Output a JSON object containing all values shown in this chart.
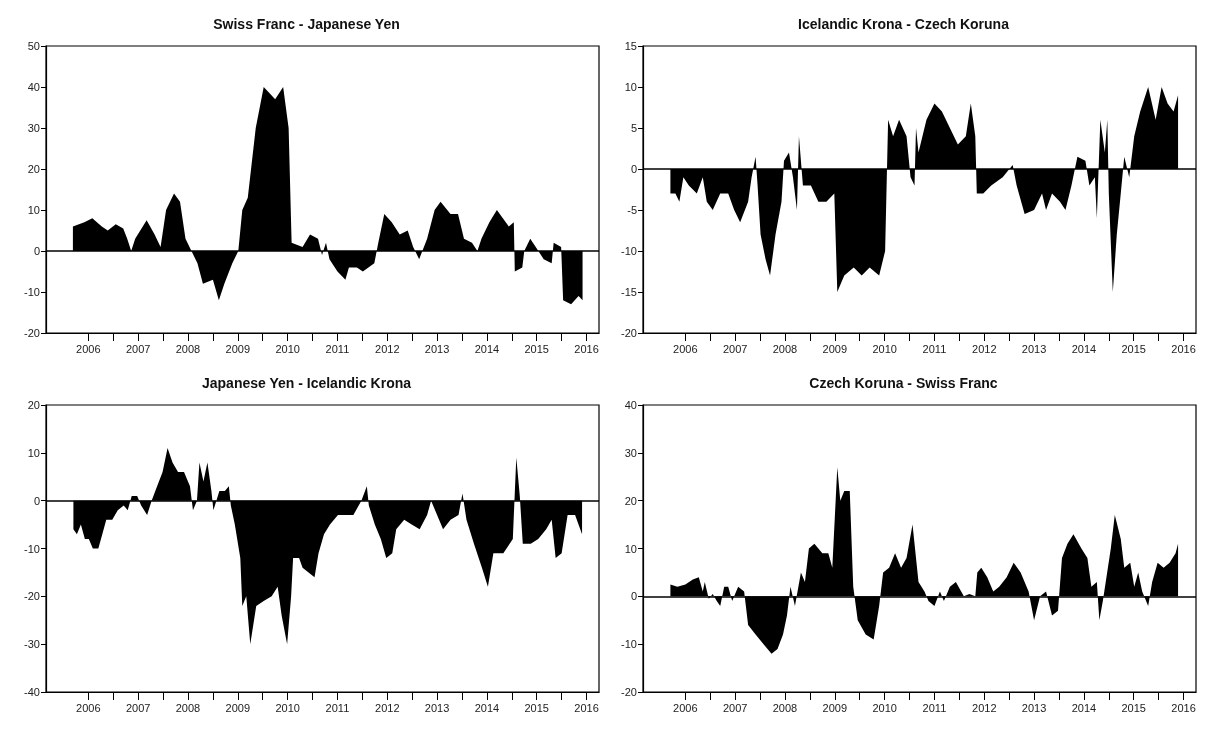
{
  "chart_data": [
    {
      "type": "area",
      "title": "Swiss Franc - Japanese Yen",
      "xlim": [
        2005.65,
        2016.75
      ],
      "ylim": [
        -20,
        50
      ],
      "yticks": [
        -20,
        -10,
        0,
        10,
        20,
        30,
        40,
        50
      ],
      "xticks": [
        {
          "value": 2006.5,
          "label": "2006"
        },
        {
          "value": 2007,
          "label": null
        },
        {
          "value": 2007.5,
          "label": "2007"
        },
        {
          "value": 2008,
          "label": null
        },
        {
          "value": 2008.5,
          "label": "2008"
        },
        {
          "value": 2009,
          "label": null
        },
        {
          "value": 2009.5,
          "label": "2009"
        },
        {
          "value": 2010,
          "label": null
        },
        {
          "value": 2010.5,
          "label": "2010"
        },
        {
          "value": 2011,
          "label": null
        },
        {
          "value": 2011.5,
          "label": "2011"
        },
        {
          "value": 2012,
          "label": null
        },
        {
          "value": 2012.5,
          "label": "2012"
        },
        {
          "value": 2013,
          "label": null
        },
        {
          "value": 2013.5,
          "label": "2013"
        },
        {
          "value": 2014,
          "label": null
        },
        {
          "value": 2014.5,
          "label": "2014"
        },
        {
          "value": 2015,
          "label": null
        },
        {
          "value": 2015.5,
          "label": "2015"
        },
        {
          "value": 2016,
          "label": null
        },
        {
          "value": 2016.5,
          "label": "2016"
        }
      ],
      "ref_lines": [
        {
          "axis": "y",
          "value": 0
        }
      ],
      "series": [
        {
          "color": "#000000",
          "x": [
            2006.19,
            2006.42,
            2006.58,
            2006.77,
            2006.89,
            2007.05,
            2007.2,
            2007.28,
            2007.36,
            2007.44,
            2007.67,
            2007.83,
            2007.95,
            2008.06,
            2008.22,
            2008.34,
            2008.45,
            2008.57,
            2008.69,
            2008.8,
            2009.0,
            2009.12,
            2009.23,
            2009.39,
            2009.51,
            2009.59,
            2009.7,
            2009.86,
            2010.02,
            2010.25,
            2010.41,
            2010.52,
            2010.58,
            2010.8,
            2010.95,
            2011.11,
            2011.19,
            2011.27,
            2011.34,
            2011.5,
            2011.66,
            2011.73,
            2011.89,
            2012.01,
            2012.24,
            2012.32,
            2012.44,
            2012.59,
            2012.75,
            2012.91,
            2013.02,
            2013.14,
            2013.3,
            2013.45,
            2013.57,
            2013.77,
            2013.92,
            2014.04,
            2014.2,
            2014.31,
            2014.39,
            2014.55,
            2014.7,
            2014.82,
            2014.94,
            2015.04,
            2015.06,
            2015.21,
            2015.25,
            2015.37,
            2015.48,
            2015.64,
            2015.8,
            2015.84,
            2015.99,
            2016.03,
            2016.19,
            2016.34,
            2016.42
          ],
          "values": [
            6,
            7,
            8,
            6,
            5,
            6.5,
            5.5,
            3,
            0,
            3,
            7.5,
            4,
            1,
            10,
            14,
            12,
            3,
            0,
            -3,
            -8,
            -7,
            -12,
            -8,
            -3,
            0,
            10,
            13,
            30,
            40,
            37,
            40,
            30,
            2,
            1,
            4,
            3,
            -1,
            2,
            -2,
            -5,
            -7,
            -4,
            -4,
            -5,
            -3,
            2,
            9,
            7,
            4,
            5,
            1,
            -2,
            3,
            10,
            12,
            9,
            9,
            3,
            2,
            0,
            3,
            7,
            10,
            8,
            6,
            7,
            -5,
            -4,
            0,
            3,
            1,
            -2,
            -3,
            2,
            1,
            -12,
            -13,
            -11,
            -12
          ]
        }
      ]
    },
    {
      "type": "area",
      "title": "Icelandic Krona - Czech Koruna",
      "xlim": [
        2005.65,
        2016.75
      ],
      "ylim": [
        -20,
        15
      ],
      "yticks": [
        -20,
        -15,
        -10,
        -5,
        0,
        5,
        10,
        15
      ],
      "xticks": [
        {
          "value": 2006.5,
          "label": "2006"
        },
        {
          "value": 2007,
          "label": null
        },
        {
          "value": 2007.5,
          "label": "2007"
        },
        {
          "value": 2008,
          "label": null
        },
        {
          "value": 2008.5,
          "label": "2008"
        },
        {
          "value": 2009,
          "label": null
        },
        {
          "value": 2009.5,
          "label": "2009"
        },
        {
          "value": 2010,
          "label": null
        },
        {
          "value": 2010.5,
          "label": "2010"
        },
        {
          "value": 2011,
          "label": null
        },
        {
          "value": 2011.5,
          "label": "2011"
        },
        {
          "value": 2012,
          "label": null
        },
        {
          "value": 2012.5,
          "label": "2012"
        },
        {
          "value": 2013,
          "label": null
        },
        {
          "value": 2013.5,
          "label": "2013"
        },
        {
          "value": 2014,
          "label": null
        },
        {
          "value": 2014.5,
          "label": "2014"
        },
        {
          "value": 2015,
          "label": null
        },
        {
          "value": 2015.5,
          "label": "2015"
        },
        {
          "value": 2016,
          "label": null
        },
        {
          "value": 2016.5,
          "label": "2016"
        }
      ],
      "ref_lines": [
        {
          "axis": "y",
          "value": 0
        }
      ],
      "series": [
        {
          "color": "#000000",
          "x": [
            2006.2,
            2006.3,
            2006.38,
            2006.46,
            2006.57,
            2006.73,
            2006.85,
            2006.93,
            2007.05,
            2007.2,
            2007.36,
            2007.48,
            2007.6,
            2007.76,
            2007.83,
            2007.91,
            2007.95,
            2008.01,
            2008.11,
            2008.2,
            2008.31,
            2008.43,
            2008.48,
            2008.58,
            2008.66,
            2008.74,
            2008.78,
            2008.86,
            2009.02,
            2009.17,
            2009.33,
            2009.49,
            2009.55,
            2009.69,
            2009.88,
            2010.04,
            2010.2,
            2010.39,
            2010.51,
            2010.57,
            2010.67,
            2010.79,
            2010.94,
            2011.02,
            2011.1,
            2011.13,
            2011.18,
            2011.34,
            2011.5,
            2011.65,
            2011.81,
            2011.97,
            2012.13,
            2012.23,
            2012.32,
            2012.35,
            2012.48,
            2012.64,
            2012.87,
            2013.07,
            2013.15,
            2013.31,
            2013.5,
            2013.66,
            2013.74,
            2013.86,
            2014.02,
            2014.13,
            2014.25,
            2014.37,
            2014.53,
            2014.61,
            2014.72,
            2014.76,
            2014.83,
            2014.92,
            2014.97,
            2015.0,
            2015.08,
            2015.16,
            2015.24,
            2015.31,
            2015.41,
            2015.51,
            2015.63,
            2015.79,
            2015.94,
            2016.06,
            2016.18,
            2016.3,
            2016.39
          ],
          "values": [
            -3,
            -3,
            -4,
            -1,
            -2,
            -3,
            -1,
            -4,
            -5,
            -3,
            -3,
            -5,
            -6.5,
            -4,
            -1,
            1.5,
            -2,
            -8,
            -11,
            -13,
            -8,
            -4,
            1,
            2,
            -1,
            -5,
            4,
            -2,
            -2,
            -4,
            -4,
            -3,
            -15,
            -13,
            -12,
            -13,
            -12,
            -13,
            -10,
            6,
            4,
            6,
            4,
            -1,
            -2,
            5,
            2,
            6,
            8,
            7,
            5,
            3,
            4,
            8,
            4,
            -3,
            -3,
            -2,
            -1,
            0.5,
            -2,
            -5.5,
            -5,
            -3,
            -5,
            -3,
            -4,
            -5,
            -2,
            1.5,
            1,
            -2,
            -1,
            -6,
            6,
            2,
            6,
            -3,
            -15,
            -8,
            -3,
            1.5,
            -1,
            4,
            7,
            10,
            6,
            10,
            8,
            7,
            9
          ]
        }
      ]
    },
    {
      "type": "area",
      "title": "Japanese Yen - Icelandic Krona",
      "xlim": [
        2005.65,
        2016.75
      ],
      "ylim": [
        -40,
        20
      ],
      "yticks": [
        -40,
        -30,
        -20,
        -10,
        0,
        10,
        20
      ],
      "xticks": [
        {
          "value": 2006.5,
          "label": "2006"
        },
        {
          "value": 2007,
          "label": null
        },
        {
          "value": 2007.5,
          "label": "2007"
        },
        {
          "value": 2008,
          "label": null
        },
        {
          "value": 2008.5,
          "label": "2008"
        },
        {
          "value": 2009,
          "label": null
        },
        {
          "value": 2009.5,
          "label": "2009"
        },
        {
          "value": 2010,
          "label": null
        },
        {
          "value": 2010.5,
          "label": "2010"
        },
        {
          "value": 2011,
          "label": null
        },
        {
          "value": 2011.5,
          "label": "2011"
        },
        {
          "value": 2012,
          "label": null
        },
        {
          "value": 2012.5,
          "label": "2012"
        },
        {
          "value": 2013,
          "label": null
        },
        {
          "value": 2013.5,
          "label": "2013"
        },
        {
          "value": 2014,
          "label": null
        },
        {
          "value": 2014.5,
          "label": "2014"
        },
        {
          "value": 2015,
          "label": null
        },
        {
          "value": 2015.5,
          "label": "2015"
        },
        {
          "value": 2016,
          "label": null
        },
        {
          "value": 2016.5,
          "label": "2016"
        }
      ],
      "ref_lines": [
        {
          "axis": "y",
          "value": 0
        }
      ],
      "series": [
        {
          "color": "#000000",
          "x": [
            2006.2,
            2006.27,
            2006.35,
            2006.43,
            2006.51,
            2006.59,
            2006.7,
            2006.78,
            2006.86,
            2006.98,
            2007.09,
            2007.21,
            2007.29,
            2007.37,
            2007.48,
            2007.56,
            2007.68,
            2007.77,
            2007.88,
            2007.99,
            2008.09,
            2008.19,
            2008.3,
            2008.42,
            2008.54,
            2008.6,
            2008.68,
            2008.73,
            2008.81,
            2008.89,
            2008.97,
            2009.01,
            2009.13,
            2009.24,
            2009.32,
            2009.36,
            2009.44,
            2009.55,
            2009.59,
            2009.67,
            2009.75,
            2009.87,
            2010.02,
            2010.18,
            2010.3,
            2010.38,
            2010.49,
            2010.57,
            2010.61,
            2010.73,
            2010.8,
            2010.92,
            2011.04,
            2011.12,
            2011.23,
            2011.35,
            2011.51,
            2011.66,
            2011.82,
            2011.98,
            2012.09,
            2012.13,
            2012.25,
            2012.37,
            2012.48,
            2012.6,
            2012.68,
            2012.84,
            2012.99,
            2013.15,
            2013.3,
            2013.38,
            2013.46,
            2013.62,
            2013.77,
            2013.93,
            2014.01,
            2014.09,
            2014.24,
            2014.4,
            2014.52,
            2014.63,
            2014.83,
            2015.02,
            2015.09,
            2015.16,
            2015.22,
            2015.38,
            2015.53,
            2015.69,
            2015.8,
            2015.88,
            2016.0,
            2016.12,
            2016.27,
            2016.41
          ],
          "values": [
            -6,
            -7,
            -5,
            -8,
            -8,
            -10,
            -10,
            -7,
            -4,
            -4,
            -2,
            -1,
            -2,
            1,
            1,
            -1,
            -3,
            0,
            3,
            6,
            11,
            8,
            6,
            6,
            3,
            -2,
            0,
            8,
            4,
            8,
            2,
            -2,
            2,
            2,
            3,
            -1,
            -5,
            -12,
            -22,
            -20,
            -30,
            -22,
            -21,
            -20,
            -18,
            -24,
            -30,
            -20,
            -12,
            -12,
            -14,
            -15,
            -16,
            -11,
            -7,
            -5,
            -3,
            -3,
            -3,
            0,
            3,
            -1,
            -5,
            -8,
            -12,
            -11,
            -6,
            -4,
            -5,
            -6,
            -3,
            0,
            -2,
            -6,
            -4,
            -3,
            1.5,
            -4,
            -9,
            -14,
            -18,
            -11,
            -11,
            -8,
            9,
            1,
            -9,
            -9,
            -8,
            -6,
            -4,
            -12,
            -11,
            -3,
            -3,
            -7
          ]
        }
      ]
    },
    {
      "type": "area",
      "title": "Czech Koruna - Swiss Franc",
      "xlim": [
        2005.65,
        2016.75
      ],
      "ylim": [
        -20,
        40
      ],
      "yticks": [
        -20,
        -10,
        0,
        10,
        20,
        30,
        40
      ],
      "xticks": [
        {
          "value": 2006.5,
          "label": "2006"
        },
        {
          "value": 2007,
          "label": null
        },
        {
          "value": 2007.5,
          "label": "2007"
        },
        {
          "value": 2008,
          "label": null
        },
        {
          "value": 2008.5,
          "label": "2008"
        },
        {
          "value": 2009,
          "label": null
        },
        {
          "value": 2009.5,
          "label": "2009"
        },
        {
          "value": 2010,
          "label": null
        },
        {
          "value": 2010.5,
          "label": "2010"
        },
        {
          "value": 2011,
          "label": null
        },
        {
          "value": 2011.5,
          "label": "2011"
        },
        {
          "value": 2012,
          "label": null
        },
        {
          "value": 2012.5,
          "label": "2012"
        },
        {
          "value": 2013,
          "label": null
        },
        {
          "value": 2013.5,
          "label": "2013"
        },
        {
          "value": 2014,
          "label": null
        },
        {
          "value": 2014.5,
          "label": "2014"
        },
        {
          "value": 2015,
          "label": null
        },
        {
          "value": 2015.5,
          "label": "2015"
        },
        {
          "value": 2016,
          "label": null
        },
        {
          "value": 2016.5,
          "label": "2016"
        }
      ],
      "ref_lines": [
        {
          "axis": "y",
          "value": 0
        }
      ],
      "series": [
        {
          "color": "#000000",
          "x": [
            2006.2,
            2006.34,
            2006.5,
            2006.65,
            2006.77,
            2006.85,
            2006.89,
            2006.97,
            2007.05,
            2007.13,
            2007.2,
            2007.28,
            2007.36,
            2007.44,
            2007.56,
            2007.68,
            2007.76,
            2007.91,
            2008.07,
            2008.23,
            2008.35,
            2008.46,
            2008.54,
            2008.61,
            2008.7,
            2008.82,
            2008.9,
            2008.98,
            2009.09,
            2009.25,
            2009.37,
            2009.45,
            2009.55,
            2009.61,
            2009.69,
            2009.8,
            2009.87,
            2009.96,
            2010.12,
            2010.28,
            2010.39,
            2010.47,
            2010.59,
            2010.71,
            2010.83,
            2010.94,
            2011.06,
            2011.18,
            2011.3,
            2011.38,
            2011.5,
            2011.61,
            2011.69,
            2011.81,
            2011.93,
            2012.09,
            2012.2,
            2012.32,
            2012.36,
            2012.44,
            2012.56,
            2012.68,
            2012.8,
            2012.95,
            2013.09,
            2013.23,
            2013.39,
            2013.5,
            2013.62,
            2013.74,
            2013.86,
            2013.98,
            2014.06,
            2014.17,
            2014.29,
            2014.45,
            2014.57,
            2014.65,
            2014.76,
            2014.81,
            2014.88,
            2015.04,
            2015.12,
            2015.24,
            2015.31,
            2015.43,
            2015.51,
            2015.59,
            2015.67,
            2015.79,
            2015.87,
            2015.98,
            2016.1,
            2016.22,
            2016.34,
            2016.39
          ],
          "values": [
            2.5,
            2,
            2.5,
            3.5,
            4,
            1,
            3,
            -0.5,
            0.5,
            -1,
            -2,
            2,
            2,
            -1,
            2,
            1,
            -6,
            -8,
            -10,
            -12,
            -11,
            -8,
            -4,
            2,
            -2,
            5,
            3,
            10,
            11,
            9,
            9,
            6,
            27,
            20,
            22,
            22,
            2,
            -5,
            -8,
            -9,
            -2,
            5,
            6,
            9,
            6,
            8,
            15,
            3,
            1,
            -1,
            -2,
            1,
            -1,
            2,
            3,
            0,
            0.5,
            0,
            5,
            6,
            4,
            1,
            2,
            4,
            7,
            5,
            1,
            -5,
            0,
            1,
            -4,
            -3,
            8,
            11,
            13,
            10,
            8,
            2,
            3,
            -5,
            -1,
            10,
            17,
            12,
            6,
            7,
            2,
            5,
            1,
            -2,
            3,
            7,
            6,
            7,
            9,
            11
          ]
        }
      ]
    }
  ]
}
